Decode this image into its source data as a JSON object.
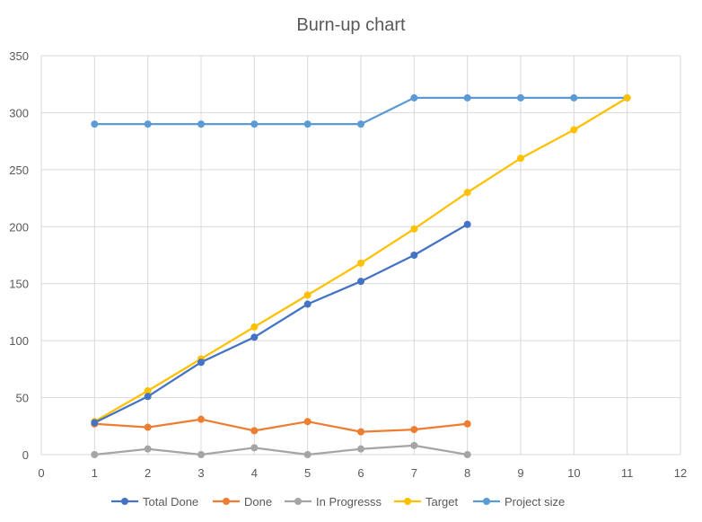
{
  "chart_data": {
    "type": "line",
    "title": "Burn-up chart",
    "xlabel": "",
    "ylabel": "",
    "xlim": [
      0,
      12
    ],
    "ylim": [
      0,
      350
    ],
    "x_ticks": [
      0,
      1,
      2,
      3,
      4,
      5,
      6,
      7,
      8,
      9,
      10,
      11,
      12
    ],
    "y_ticks": [
      0,
      50,
      100,
      150,
      200,
      250,
      300,
      350
    ],
    "grid": true,
    "legend_position": "bottom",
    "series": [
      {
        "name": "Total Done",
        "color": "#4472c4",
        "x": [
          1,
          2,
          3,
          4,
          5,
          6,
          7,
          8
        ],
        "values": [
          28,
          51,
          81,
          103,
          132,
          152,
          175,
          202
        ]
      },
      {
        "name": "Done",
        "color": "#ed7d31",
        "x": [
          1,
          2,
          3,
          4,
          5,
          6,
          7,
          8
        ],
        "values": [
          27,
          24,
          31,
          21,
          29,
          20,
          22,
          27
        ]
      },
      {
        "name": "In Progresss",
        "color": "#a5a5a5",
        "x": [
          1,
          2,
          3,
          4,
          5,
          6,
          7,
          8
        ],
        "values": [
          0,
          5,
          0,
          6,
          0,
          5,
          8,
          0
        ]
      },
      {
        "name": "Target",
        "color": "#ffc000",
        "x": [
          1,
          2,
          3,
          4,
          5,
          6,
          7,
          8,
          9,
          10,
          11
        ],
        "values": [
          29,
          56,
          84,
          112,
          140,
          168,
          198,
          230,
          260,
          285,
          313
        ]
      },
      {
        "name": "Project size",
        "color": "#5b9bd5",
        "x": [
          1,
          2,
          3,
          4,
          5,
          6,
          7,
          8,
          9,
          10,
          11
        ],
        "values": [
          290,
          290,
          290,
          290,
          290,
          290,
          313,
          313,
          313,
          313,
          313
        ]
      }
    ]
  }
}
